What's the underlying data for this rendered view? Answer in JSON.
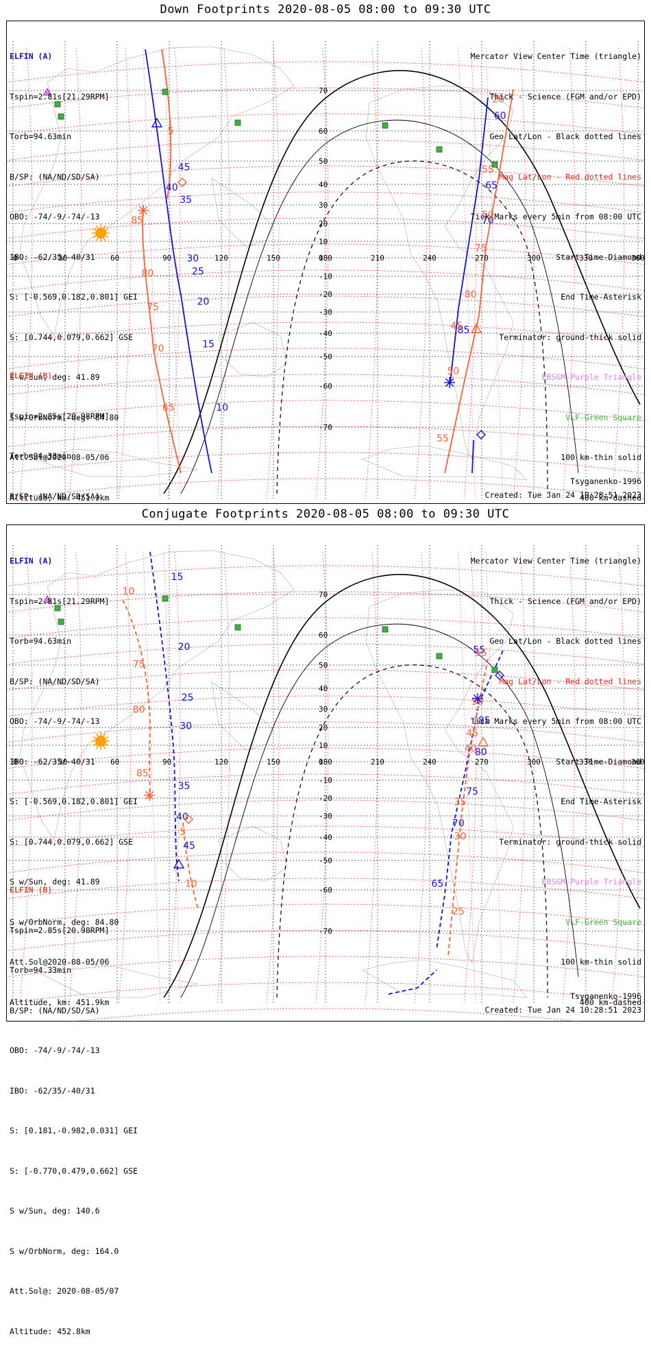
{
  "colors": {
    "elfin_a": "#1010e0",
    "elfin_b": "#ff6030",
    "geo_grid": "#000000",
    "mag_grid": "#ff1a1a",
    "ebsgm": "#e080e0",
    "vlf": "#40b040",
    "coast": "#c0c0c0"
  },
  "map_axes": {
    "lon_ticks": [
      "0",
      "30",
      "60",
      "90",
      "120",
      "150",
      "180",
      "210",
      "240",
      "270",
      "300",
      "330",
      "360"
    ],
    "lat_ticks": [
      "70",
      "60",
      "50",
      "40",
      "30",
      "20",
      "10",
      "0",
      "-10",
      "-20",
      "-30",
      "-40",
      "-50",
      "-60",
      "-70"
    ],
    "lon_range": [
      0,
      360
    ],
    "projection": "Mercator"
  },
  "elfin_a_info": {
    "header": "ELFIN (A)",
    "lines": [
      "Tspin=2.81s[21.29RPM]",
      "Torb=94.63min",
      "B/SP: (NA/ND/SD/SA)",
      "OBO: -74/-9/-74/-13",
      "IBO: -62/35/-40/31",
      "S: [-0.569,0.182,0.801] GEI",
      "S: [0.744,0.079,0.662] GSE",
      "S w/Sun, deg: 41.89",
      "S w/OrbNorm, deg: 84.80",
      "Att.Sol@2020-08-05/06",
      "Altitude, km: 451.9km"
    ]
  },
  "elfin_b_info": {
    "header": "ELFIN (B)",
    "lines": [
      "Tspin=2.85s[20.98RPM]",
      "Torb=94.33min",
      "B/SP: (NA/ND/SD/SA)",
      "OBO: -74/-9/-74/-13",
      "IBO: -62/35/-40/31",
      "S: [0.181,-0.982,0.031] GEI",
      "S: [-0.770,0.479,0.662] GSE",
      "S w/Sun, deg: 140.6",
      "S w/OrbNorm, deg: 164.0",
      "Att.Sol@: 2020-08-05/07",
      "Altitude: 452.8km"
    ]
  },
  "legend": {
    "lines": [
      {
        "text": "Mercator View Center Time (triangle)",
        "color": "black"
      },
      {
        "text": "Thick - Science (FGM and/or EPD)",
        "color": "black"
      },
      {
        "text": "Geo Lat/Lon - Black dotted lines",
        "color": "black"
      },
      {
        "text": "Mag Lat/Lon - Red dotted lines",
        "color": "red"
      },
      {
        "text": "Tick Marks every 5min from 08:00 UTC",
        "color": "black"
      },
      {
        "text": "Start Time-Diamond",
        "color": "black"
      },
      {
        "text": "End Time-Asterisk",
        "color": "black"
      },
      {
        "text": "Terminator: ground-thick solid",
        "color": "black"
      },
      {
        "text": "EBSGM-Purple Triangle",
        "color": "violet"
      },
      {
        "text": "VLF-Green Square",
        "color": "green"
      },
      {
        "text": "100 km-thin solid",
        "color": "black"
      },
      {
        "text": "400 km-dashed",
        "color": "black"
      }
    ]
  },
  "model_label": "Tsyganenko-1996",
  "created_label": "Created: Tue Jan 24 10:28:51 2023",
  "panels": [
    {
      "title": "Down Footprints 2020-08-05 08:00 to 09:30 UTC",
      "a_ticks": [
        {
          "label": "45",
          "lon": 95,
          "lat": 46
        },
        {
          "label": "40",
          "lon": 88,
          "lat": 37
        },
        {
          "label": "35",
          "lon": 96,
          "lat": 31
        },
        {
          "label": "30",
          "lon": 100,
          "lat": -2
        },
        {
          "label": "25",
          "lon": 103,
          "lat": -9
        },
        {
          "label": "20",
          "lon": 106,
          "lat": -26
        },
        {
          "label": "15",
          "lon": 109,
          "lat": -46
        },
        {
          "label": "10",
          "lon": 117,
          "lat": -66
        },
        {
          "label": "60",
          "lon": 277,
          "lat": 63
        },
        {
          "label": "65",
          "lon": 272,
          "lat": 38
        },
        {
          "label": "70",
          "lon": 270,
          "lat": 20
        },
        {
          "label": "85",
          "lon": 256,
          "lat": -40
        }
      ],
      "b_ticks": [
        {
          "label": "5",
          "lon": 89,
          "lat": 59
        },
        {
          "label": "85",
          "lon": 68,
          "lat": 20
        },
        {
          "label": "80",
          "lon": 74,
          "lat": -10
        },
        {
          "label": "75",
          "lon": 77,
          "lat": -29
        },
        {
          "label": "70",
          "lon": 80,
          "lat": -48
        },
        {
          "label": "65",
          "lon": 86,
          "lat": -66
        },
        {
          "label": "20",
          "lon": 276,
          "lat": 67
        },
        {
          "label": "55",
          "lon": 270,
          "lat": 45
        },
        {
          "label": "50",
          "lon": 270,
          "lat": 23
        },
        {
          "label": "75",
          "lon": 266,
          "lat": 4
        },
        {
          "label": "80",
          "lon": 260,
          "lat": -22
        },
        {
          "label": "45",
          "lon": 252,
          "lat": -38
        },
        {
          "label": "50",
          "lon": 250,
          "lat": -56
        },
        {
          "label": "55",
          "lon": 244,
          "lat": -73
        }
      ]
    },
    {
      "title": "Conjugate Footprints 2020-08-05 08:00 to 09:30 UTC",
      "a_ticks": [
        {
          "label": "15",
          "lon": 91,
          "lat": 73
        },
        {
          "label": "20",
          "lon": 95,
          "lat": 55
        },
        {
          "label": "25",
          "lon": 97,
          "lat": 34
        },
        {
          "label": "30",
          "lon": 96,
          "lat": 19
        },
        {
          "label": "35",
          "lon": 95,
          "lat": -15
        },
        {
          "label": "40",
          "lon": 94,
          "lat": -32
        },
        {
          "label": "45",
          "lon": 98,
          "lat": -45
        },
        {
          "label": "55",
          "lon": 265,
          "lat": 54
        },
        {
          "label": "85",
          "lon": 268,
          "lat": 22
        },
        {
          "label": "80",
          "lon": 266,
          "lat": 4
        },
        {
          "label": "75",
          "lon": 261,
          "lat": -18
        },
        {
          "label": "70",
          "lon": 253,
          "lat": -35
        },
        {
          "label": "65",
          "lon": 241,
          "lat": -59
        }
      ],
      "b_ticks": [
        {
          "label": "10",
          "lon": 63,
          "lat": 70
        },
        {
          "label": "75",
          "lon": 69,
          "lat": 49
        },
        {
          "label": "80",
          "lon": 69,
          "lat": 28
        },
        {
          "label": "85",
          "lon": 71,
          "lat": -8
        },
        {
          "label": "5",
          "lon": 96,
          "lat": -39
        },
        {
          "label": "10",
          "lon": 99,
          "lat": -59
        },
        {
          "label": "55",
          "lon": 266,
          "lat": 53
        },
        {
          "label": "50",
          "lon": 264,
          "lat": 32
        },
        {
          "label": "45",
          "lon": 261,
          "lat": 15
        },
        {
          "label": "40",
          "lon": 260,
          "lat": 6
        },
        {
          "label": "35",
          "lon": 254,
          "lat": -24
        },
        {
          "label": "30",
          "lon": 254,
          "lat": -41
        },
        {
          "label": "25",
          "lon": 253,
          "lat": -66
        }
      ]
    }
  ]
}
